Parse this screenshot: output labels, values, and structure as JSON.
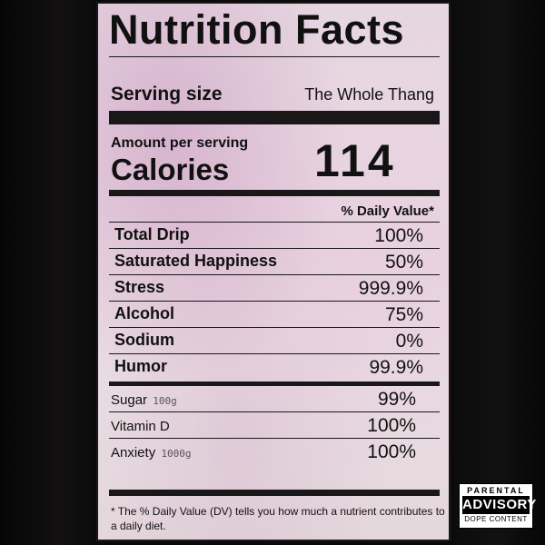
{
  "label": {
    "title": "Nutrition Facts",
    "serving_size_label": "Serving size",
    "serving_size_value": "The Whole Thang",
    "amount_per_serving": "Amount per serving",
    "calories_label": "Calories",
    "calories_value": "114",
    "daily_value_header": "% Daily Value*",
    "major_rows": [
      {
        "name": "Total Drip",
        "value": "100%"
      },
      {
        "name": "Saturated Happiness",
        "value": "50%"
      },
      {
        "name": "Stress",
        "value": "999.9%"
      },
      {
        "name": "Alcohol",
        "value": "75%"
      },
      {
        "name": "Sodium",
        "value": "0%"
      },
      {
        "name": "Humor",
        "value": "99.9%"
      }
    ],
    "minor_rows": [
      {
        "name": "Sugar",
        "amount": "100g",
        "value": "99%"
      },
      {
        "name": "Vitamin D",
        "amount": "",
        "value": "100%"
      },
      {
        "name": "Anxiety",
        "amount": "1000g",
        "value": "100%"
      }
    ],
    "footnote": "* The % Daily Value (DV) tells you how much a nutrient contributes to a daily diet."
  },
  "advisory": {
    "top": "PARENTAL",
    "middle": "ADVISORY",
    "bottom": "DOPE CONTENT"
  },
  "colors": {
    "background": "#0b0a0a",
    "label_tint": "#e6d6e0",
    "ink": "#1a1718"
  }
}
